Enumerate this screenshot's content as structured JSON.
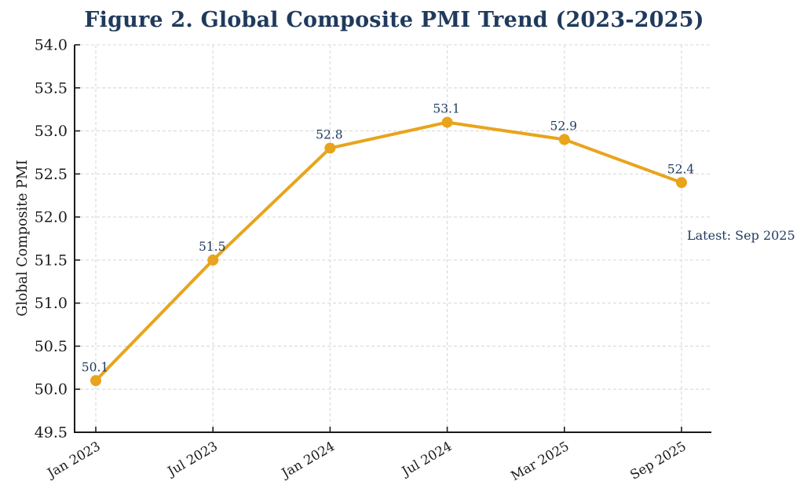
{
  "colors": {
    "line": "#E8A41C",
    "navy": "#1F3A5C",
    "axis": "#1a1a1a",
    "grid": "#d9d9d9",
    "background": "#ffffff"
  },
  "chart_data": {
    "type": "line",
    "title": "Figure 2. Global Composite PMI Trend (2023-2025)",
    "categories": [
      "Jan 2023",
      "Jul 2023",
      "Jan 2024",
      "Jul 2024",
      "Mar 2025",
      "Sep 2025"
    ],
    "values": [
      50.1,
      51.5,
      52.8,
      53.1,
      52.9,
      52.4
    ],
    "point_labels": [
      "50.1",
      "51.5",
      "52.8",
      "53.1",
      "52.9",
      "52.4"
    ],
    "xlabel": "",
    "ylabel": "Global Composite PMI",
    "ylim": [
      49.5,
      54.0
    ],
    "yticks": [
      49.5,
      50.0,
      50.5,
      51.0,
      51.5,
      52.0,
      52.5,
      53.0,
      53.5,
      54.0
    ],
    "grid": true,
    "grid_style": "dashed",
    "legend": "none",
    "annotation": "Latest: Sep 2025",
    "marker": "circle",
    "x_tick_rotation_deg": 30
  }
}
